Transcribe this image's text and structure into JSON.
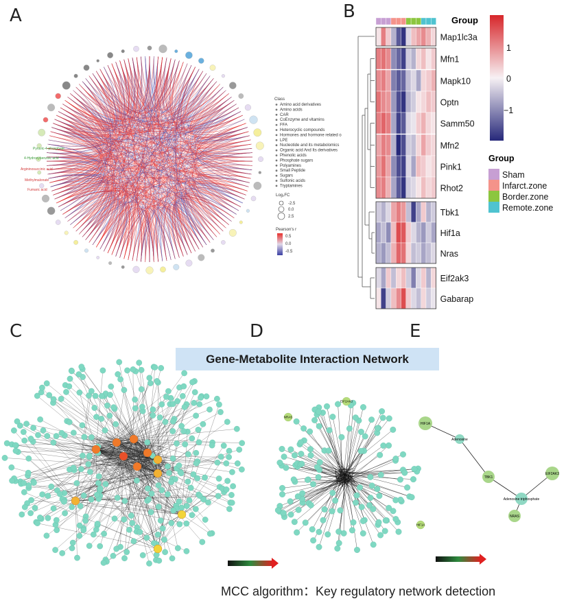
{
  "panels": {
    "a": "A",
    "b": "B",
    "c": "C",
    "d": "D",
    "e": "E"
  },
  "panel_a": {
    "legend": {
      "class_title": "Class",
      "classes": [
        "Amino acid derivatives",
        "Amino acids",
        "CAR",
        "CoEnzyme and vitamins",
        "FFA",
        "Heterocyclic compounds",
        "Hormones and hormone related compounds",
        "LPE",
        "Nucleotide and its metabolomics",
        "Organic acid And Its derivatives",
        "Phenolic acids",
        "Phosphate sugars",
        "Polyamines",
        "Small Peptide",
        "Sugars",
        "Sulfonic acids",
        "Tryptamines"
      ],
      "logfc_title": "Log₂FC",
      "logfc_values": [
        "-2.5",
        "0.0",
        "2.5"
      ],
      "pearson_title": "Pearson's r",
      "pearson_ticks": [
        "0.5",
        "0.0",
        "-0.5"
      ]
    },
    "highlight_labels": {
      "green": [
        "Pyruvic-4-phosphate",
        "4-Hydroxybenzoic acid"
      ],
      "red": [
        "Argininosuccinic acid",
        "Methylmalonate",
        "Fumaric acid"
      ]
    }
  },
  "panel_b": {
    "group_header": "Group",
    "genes": [
      "Map1lc3a",
      "Mfn1",
      "Mapk10",
      "Optn",
      "Samm50",
      "Mfn2",
      "Pink1",
      "Rhot2",
      "Tbk1",
      "Hif1a",
      "Nras",
      "Eif2ak3",
      "Gabarap"
    ],
    "colorbar_ticks": [
      "1",
      "0",
      "−1"
    ],
    "group_legend_title": "Group",
    "groups": [
      {
        "name": "Sham",
        "color": "#c79fd3"
      },
      {
        "name": "Infarct.zone",
        "color": "#f4938a"
      },
      {
        "name": "Border.zone",
        "color": "#8cc63f"
      },
      {
        "name": "Remote.zone",
        "color": "#4fc3d0"
      }
    ],
    "matrix": [
      [
        0.1,
        0.9,
        0.3,
        -0.5,
        -1.2,
        -1.5,
        -0.2,
        0.4,
        0.6,
        0.8,
        0.5,
        0.2
      ],
      [
        0.9,
        1.0,
        0.8,
        -0.8,
        -1.1,
        -1.4,
        -0.3,
        -0.5,
        0.2,
        0.4,
        0.1,
        0.3
      ],
      [
        0.8,
        0.9,
        0.6,
        -0.9,
        -1.2,
        -1.1,
        -0.4,
        -0.2,
        -0.6,
        0.2,
        0.3,
        0.5
      ],
      [
        1.0,
        0.8,
        0.7,
        -0.7,
        -1.3,
        -1.5,
        -0.5,
        -0.3,
        0.1,
        0.2,
        0.4,
        0.3
      ],
      [
        0.9,
        1.1,
        0.9,
        -0.6,
        -1.4,
        -1.2,
        -0.2,
        -0.1,
        0.3,
        0.5,
        0.2,
        0.1
      ],
      [
        0.6,
        0.9,
        0.8,
        -0.5,
        -1.6,
        -1.3,
        -0.3,
        -0.4,
        0.2,
        0.6,
        0.3,
        0.2
      ],
      [
        0.7,
        1.0,
        0.6,
        -0.8,
        -1.3,
        -1.4,
        -0.2,
        -0.6,
        0.4,
        0.3,
        0.1,
        0.2
      ],
      [
        0.8,
        0.9,
        0.5,
        -0.6,
        -1.2,
        -1.5,
        -0.3,
        -0.2,
        0.1,
        0.4,
        0.2,
        0.3
      ],
      [
        -0.3,
        -0.5,
        -0.2,
        0.6,
        0.9,
        0.7,
        -0.4,
        -1.4,
        -0.6,
        0.3,
        -0.5,
        -0.3
      ],
      [
        -0.6,
        -0.4,
        -0.8,
        0.4,
        1.3,
        1.2,
        0.3,
        -0.2,
        -0.5,
        -0.7,
        -0.3,
        -0.6
      ],
      [
        -0.5,
        -0.7,
        -0.4,
        0.5,
        1.1,
        1.0,
        0.2,
        -0.4,
        -0.3,
        -0.6,
        -0.4,
        -0.2
      ],
      [
        -0.2,
        -0.6,
        0.3,
        -0.4,
        0.2,
        0.4,
        -0.3,
        -0.9,
        -0.2,
        0.3,
        -0.5,
        0.2
      ],
      [
        0.1,
        -1.4,
        -0.3,
        0.4,
        0.8,
        1.3,
        0.3,
        -0.2,
        -0.4,
        0.2,
        -0.3,
        -0.1
      ]
    ],
    "column_groups": [
      "Sham",
      "Sham",
      "Sham",
      "Infarct.zone",
      "Infarct.zone",
      "Infarct.zone",
      "Border.zone",
      "Border.zone",
      "Border.zone",
      "Remote.zone",
      "Remote.zone",
      "Remote.zone"
    ]
  },
  "network_title": "Gene-Metabolite Interaction Network",
  "panel_e": {
    "nodes": [
      "HIF1A",
      "Adenosine",
      "TBK1",
      "EIF2AK3",
      "Adenosine triphosphate",
      "NRAS"
    ]
  },
  "panel_d": {
    "highlight_nodes": [
      "EIF2AK3",
      "NRAS",
      "HIF1A"
    ]
  },
  "footer": "MCC algorithm：Key regulatory network detection"
}
